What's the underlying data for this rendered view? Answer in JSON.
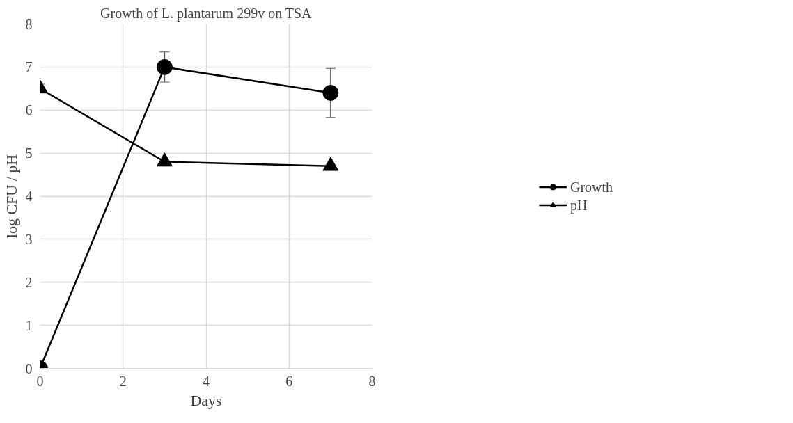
{
  "chart_data": {
    "type": "line",
    "title": "Growth of L. plantarum 299v on TSA",
    "xlabel": "Days",
    "ylabel": "log CFU / pH",
    "x": [
      0,
      3,
      7
    ],
    "series": [
      {
        "name": "Growth",
        "color": "#000000",
        "marker": "circle",
        "values": [
          0,
          7.0,
          6.4
        ],
        "errors": [
          null,
          0.35,
          0.57
        ]
      },
      {
        "name": "pH",
        "color": "#000000",
        "marker": "triangle",
        "values": [
          6.5,
          4.8,
          4.7
        ],
        "errors": [
          0.1,
          null,
          null
        ]
      }
    ],
    "xlim": [
      0,
      8
    ],
    "xticks": [
      0,
      2,
      4,
      6,
      8
    ],
    "ylim": [
      0,
      8
    ],
    "yticks": [
      0,
      1,
      2,
      3,
      4,
      5,
      6,
      7,
      8
    ],
    "grid": true,
    "legend": "right",
    "line_style": "solid"
  }
}
